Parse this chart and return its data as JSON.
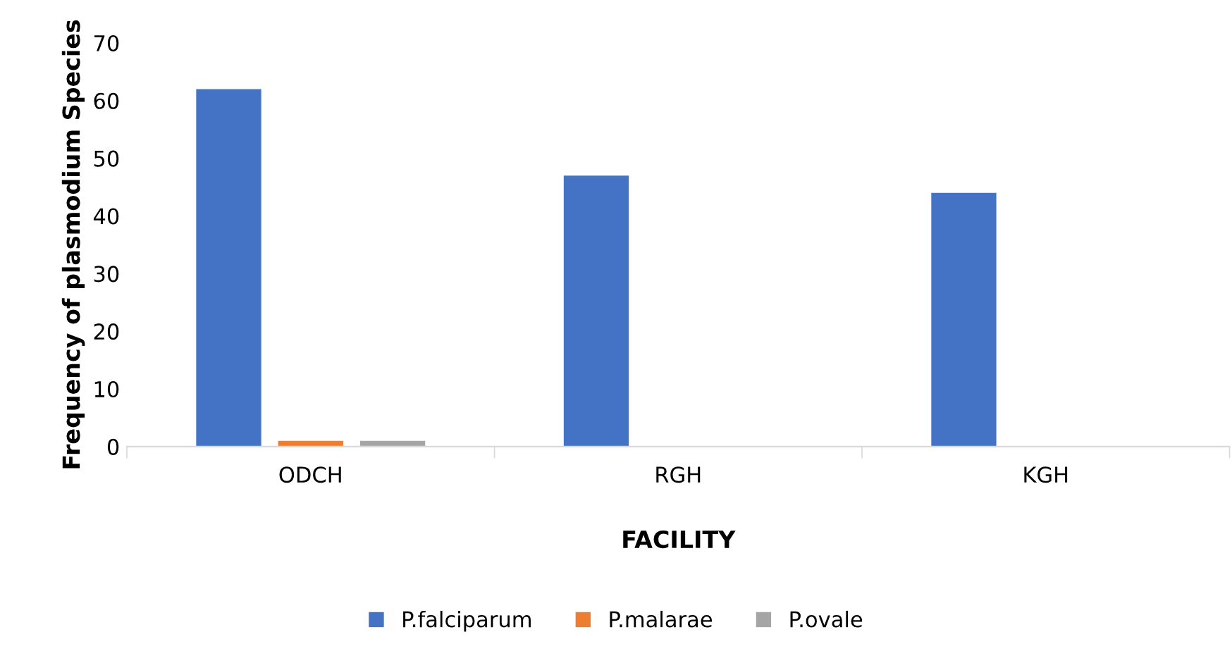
{
  "chart_data": {
    "type": "bar",
    "xlabel": "FACILITY",
    "ylabel": "Frequency of plasmodium Species",
    "categories": [
      "ODCH",
      "RGH",
      "KGH"
    ],
    "series": [
      {
        "name": "P.falciparum",
        "color": "#4472c4",
        "values": [
          62,
          47,
          44
        ]
      },
      {
        "name": "P.malarae",
        "color": "#ed7d31",
        "values": [
          1,
          0,
          0
        ]
      },
      {
        "name": "P.ovale",
        "color": "#a5a5a5",
        "values": [
          1,
          0,
          0
        ]
      }
    ],
    "ylim": [
      0,
      70
    ],
    "yticks": [
      0,
      10,
      20,
      30,
      40,
      50,
      60,
      70
    ],
    "grid": false,
    "legend": "bottom"
  }
}
